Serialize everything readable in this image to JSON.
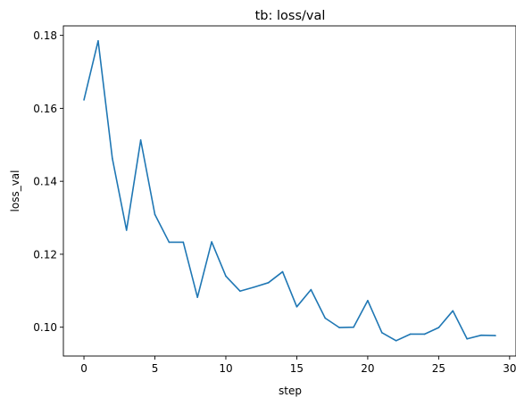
{
  "chart_data": {
    "type": "line",
    "title": "tb: loss/val",
    "xlabel": "step",
    "ylabel": "loss_val",
    "xlim": [
      -1.45,
      30.45
    ],
    "ylim": [
      0.0921,
      0.1826
    ],
    "xticks": [
      0,
      5,
      10,
      15,
      20,
      25,
      30
    ],
    "yticks": [
      0.1,
      0.12,
      0.14,
      0.16,
      0.18
    ],
    "ytick_labels": [
      "0.10",
      "0.12",
      "0.14",
      "0.16",
      "0.18"
    ],
    "grid": false,
    "series": [
      {
        "color": "#1f77b4",
        "x": [
          0,
          1,
          2,
          3,
          4,
          5,
          6,
          7,
          8,
          9,
          10,
          11,
          12,
          13,
          14,
          15,
          16,
          17,
          18,
          19,
          20,
          21,
          22,
          23,
          24,
          25,
          26,
          27,
          28,
          29
        ],
        "values": [
          0.1623,
          0.1785,
          0.1463,
          0.1266,
          0.1513,
          0.1309,
          0.1233,
          0.1233,
          0.1082,
          0.1234,
          0.114,
          0.1099,
          0.111,
          0.1122,
          0.1152,
          0.1056,
          0.1103,
          0.1025,
          0.0999,
          0.1,
          0.1073,
          0.0985,
          0.0963,
          0.0981,
          0.0981,
          0.0999,
          0.1045,
          0.0968,
          0.0978,
          0.0977
        ]
      }
    ]
  }
}
